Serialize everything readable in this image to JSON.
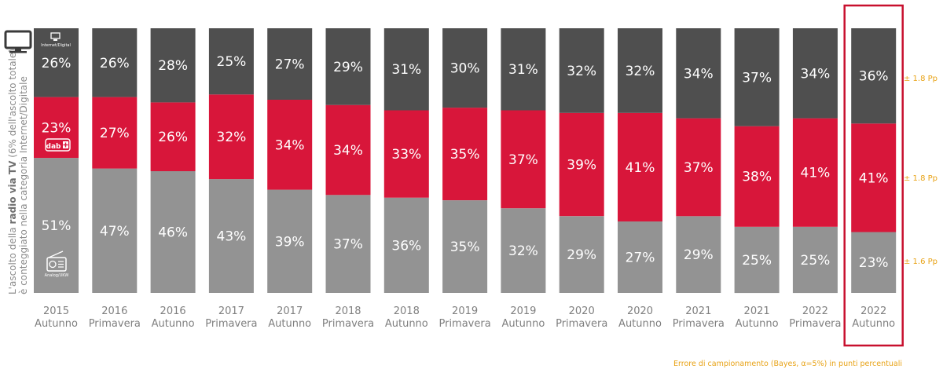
{
  "chart_data": {
    "type": "bar",
    "stacked": true,
    "normalized_percent": true,
    "categories": [
      [
        "2015",
        "Autunno"
      ],
      [
        "2016",
        "Primavera"
      ],
      [
        "2016",
        "Autunno"
      ],
      [
        "2017",
        "Primavera"
      ],
      [
        "2017",
        "Autunno"
      ],
      [
        "2018",
        "Primavera"
      ],
      [
        "2018",
        "Autunno"
      ],
      [
        "2019",
        "Primavera"
      ],
      [
        "2019",
        "Autunno"
      ],
      [
        "2020",
        "Primavera"
      ],
      [
        "2020",
        "Autunno"
      ],
      [
        "2021",
        "Primavera"
      ],
      [
        "2021",
        "Autunno"
      ],
      [
        "2022",
        "Primavera"
      ],
      [
        "2022",
        "Autunno"
      ]
    ],
    "series": [
      {
        "color": "#939393",
        "values": [
          51,
          47,
          46,
          43,
          39,
          37,
          36,
          35,
          32,
          29,
          27,
          29,
          25,
          25,
          23
        ]
      },
      {
        "color": "#d8163a",
        "values": [
          23,
          27,
          26,
          32,
          34,
          34,
          33,
          35,
          37,
          39,
          41,
          37,
          38,
          41,
          41
        ]
      },
      {
        "color": "#4f4f4f",
        "values": [
          26,
          26,
          28,
          25,
          27,
          29,
          31,
          30,
          31,
          32,
          32,
          34,
          37,
          34,
          36
        ]
      }
    ],
    "value_suffix": "%",
    "highlighted_category_index": 14,
    "highlight_color": "#c8102e",
    "y_axis_label": {
      "line1_pre": "L'ascolto della ",
      "line1_bold": "radio via TV",
      "line1_post": " (6% dell'ascolto totale)",
      "line2": "è conteggiato nella categoria Internet/Digitale"
    },
    "legend_icon_labels": {
      "internet": "Internet/Digital",
      "dab": "dab",
      "analog": "Analog/UKW"
    },
    "sampling_errors": [
      "± 1.8 Pp",
      "± 1.8 Pp",
      "± 1.6 Pp"
    ],
    "footnote": "Errore di campionamento (Bayes, α=5%) in punti percentuali"
  }
}
